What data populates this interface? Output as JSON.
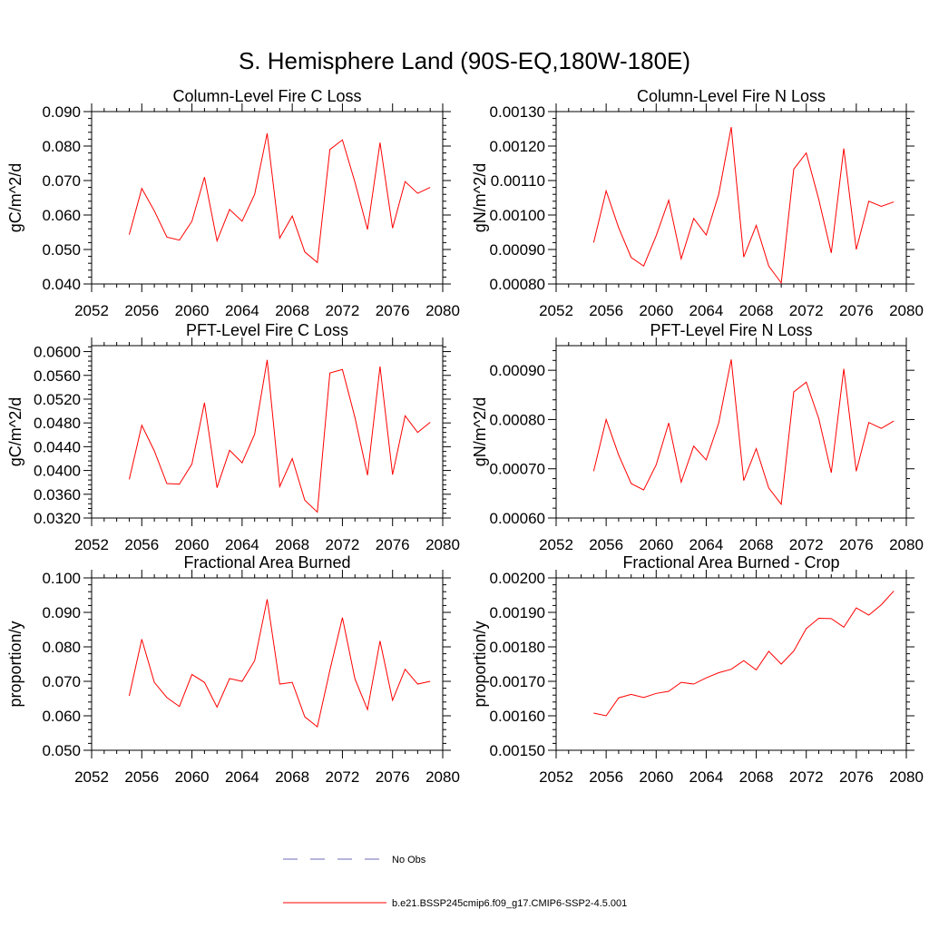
{
  "figure": {
    "title": "S. Hemisphere Land (90S-EQ,180W-180E)"
  },
  "colors": {
    "series": "#ff0000",
    "obs": "#6b6bb5",
    "axis": "#000000"
  },
  "legend": {
    "placement": "bottom-center",
    "entries": [
      {
        "label": "No Obs",
        "style": "dashed",
        "color": "#6b6bb5"
      },
      {
        "label": "b.e21.BSSP245cmip6.f09_g17.CMIP6-SSP2-4.5.001",
        "style": "solid",
        "color": "#ff0000"
      }
    ]
  },
  "chart_data": [
    {
      "type": "line",
      "title": "Column-Level Fire C Loss",
      "xlabel": "",
      "ylabel": "gC/m^2/d",
      "xlim": [
        2052,
        2080
      ],
      "xticks": [
        "2052",
        "2056",
        "2060",
        "2064",
        "2068",
        "2072",
        "2076",
        "2080"
      ],
      "ylim": [
        0.04,
        0.09
      ],
      "yticks": [
        "0.040",
        "0.050",
        "0.060",
        "0.070",
        "0.080",
        "0.090"
      ],
      "x": [
        2055,
        2056,
        2057,
        2058,
        2059,
        2060,
        2061,
        2062,
        2063,
        2064,
        2065,
        2066,
        2067,
        2068,
        2069,
        2070,
        2071,
        2072,
        2073,
        2074,
        2075,
        2076,
        2077,
        2078,
        2079
      ],
      "series": [
        {
          "values": [
            0.0543,
            0.0677,
            0.0612,
            0.0536,
            0.0527,
            0.0582,
            0.071,
            0.0525,
            0.0616,
            0.0582,
            0.066,
            0.0837,
            0.0533,
            0.0597,
            0.0493,
            0.0462,
            0.079,
            0.0818,
            0.0695,
            0.0558,
            0.081,
            0.0562,
            0.0697,
            0.0663,
            0.068
          ]
        }
      ]
    },
    {
      "type": "line",
      "title": "Column-Level Fire N Loss",
      "xlabel": "",
      "ylabel": "gN/m^2/d",
      "xlim": [
        2052,
        2080
      ],
      "xticks": [
        "2052",
        "2056",
        "2060",
        "2064",
        "2068",
        "2072",
        "2076",
        "2080"
      ],
      "ylim": [
        0.0008,
        0.0013
      ],
      "yticks": [
        "0.00080",
        "0.00090",
        "0.00100",
        "0.00110",
        "0.00120",
        "0.00130"
      ],
      "x": [
        2055,
        2056,
        2057,
        2058,
        2059,
        2060,
        2061,
        2062,
        2063,
        2064,
        2065,
        2066,
        2067,
        2068,
        2069,
        2070,
        2071,
        2072,
        2073,
        2074,
        2075,
        2076,
        2077,
        2078,
        2079
      ],
      "series": [
        {
          "values": [
            0.00092,
            0.00107,
            0.000963,
            0.000877,
            0.000852,
            0.00094,
            0.001043,
            0.000873,
            0.00099,
            0.000942,
            0.00106,
            0.001255,
            0.000878,
            0.00097,
            0.000852,
            0.000803,
            0.001133,
            0.00118,
            0.001045,
            0.00089,
            0.001193,
            0.0009,
            0.00104,
            0.001025,
            0.001038
          ]
        }
      ]
    },
    {
      "type": "line",
      "title": "PFT-Level Fire C Loss",
      "xlabel": "",
      "ylabel": "gC/m^2/d",
      "xlim": [
        2052,
        2080
      ],
      "xticks": [
        "2052",
        "2056",
        "2060",
        "2064",
        "2068",
        "2072",
        "2076",
        "2080"
      ],
      "ylim": [
        0.032,
        0.061
      ],
      "yticks": [
        "0.0320",
        "0.0360",
        "0.0400",
        "0.0440",
        "0.0480",
        "0.0520",
        "0.0560",
        "0.0600"
      ],
      "x": [
        2055,
        2056,
        2057,
        2058,
        2059,
        2060,
        2061,
        2062,
        2063,
        2064,
        2065,
        2066,
        2067,
        2068,
        2069,
        2070,
        2071,
        2072,
        2073,
        2074,
        2075,
        2076,
        2077,
        2078,
        2079
      ],
      "series": [
        {
          "values": [
            0.0385,
            0.0476,
            0.0433,
            0.0378,
            0.0377,
            0.0411,
            0.0514,
            0.0371,
            0.0434,
            0.0413,
            0.0461,
            0.0586,
            0.0373,
            0.042,
            0.035,
            0.033,
            0.0564,
            0.057,
            0.0489,
            0.0392,
            0.0575,
            0.0393,
            0.0492,
            0.0464,
            0.0481
          ]
        }
      ]
    },
    {
      "type": "line",
      "title": "PFT-Level Fire N Loss",
      "xlabel": "",
      "ylabel": "gN/m^2/d",
      "xlim": [
        2052,
        2080
      ],
      "xticks": [
        "2052",
        "2056",
        "2060",
        "2064",
        "2068",
        "2072",
        "2076",
        "2080"
      ],
      "ylim": [
        0.0006,
        0.00095
      ],
      "yticks": [
        "0.00060",
        "0.00070",
        "0.00080",
        "0.00090"
      ],
      "x": [
        2055,
        2056,
        2057,
        2058,
        2059,
        2060,
        2061,
        2062,
        2063,
        2064,
        2065,
        2066,
        2067,
        2068,
        2069,
        2070,
        2071,
        2072,
        2073,
        2074,
        2075,
        2076,
        2077,
        2078,
        2079
      ],
      "series": [
        {
          "values": [
            0.000695,
            0.0008,
            0.000728,
            0.00067,
            0.000657,
            0.000708,
            0.000793,
            0.000673,
            0.000746,
            0.000718,
            0.000793,
            0.000922,
            0.000676,
            0.000741,
            0.000661,
            0.000628,
            0.000856,
            0.000876,
            0.000802,
            0.000692,
            0.000903,
            0.000695,
            0.000794,
            0.000782,
            0.000797
          ]
        }
      ]
    },
    {
      "type": "line",
      "title": "Fractional Area Burned",
      "xlabel": "",
      "ylabel": "proportion/y",
      "xlim": [
        2052,
        2080
      ],
      "xticks": [
        "2052",
        "2056",
        "2060",
        "2064",
        "2068",
        "2072",
        "2076",
        "2080"
      ],
      "ylim": [
        0.05,
        0.1
      ],
      "yticks": [
        "0.050",
        "0.060",
        "0.070",
        "0.080",
        "0.090",
        "0.100"
      ],
      "x": [
        2055,
        2056,
        2057,
        2058,
        2059,
        2060,
        2061,
        2062,
        2063,
        2064,
        2065,
        2066,
        2067,
        2068,
        2069,
        2070,
        2071,
        2072,
        2073,
        2074,
        2075,
        2076,
        2077,
        2078,
        2079
      ],
      "series": [
        {
          "values": [
            0.0658,
            0.0822,
            0.0697,
            0.0653,
            0.0627,
            0.072,
            0.0697,
            0.0625,
            0.0708,
            0.07,
            0.076,
            0.0938,
            0.0692,
            0.0697,
            0.0597,
            0.0568,
            0.0732,
            0.0885,
            0.0707,
            0.0618,
            0.0817,
            0.0645,
            0.0735,
            0.0692,
            0.07
          ]
        }
      ]
    },
    {
      "type": "line",
      "title": "Fractional Area Burned - Crop",
      "xlabel": "",
      "ylabel": "proportion/y",
      "xlim": [
        2052,
        2080
      ],
      "xticks": [
        "2052",
        "2056",
        "2060",
        "2064",
        "2068",
        "2072",
        "2076",
        "2080"
      ],
      "ylim": [
        0.0015,
        0.002
      ],
      "yticks": [
        "0.00150",
        "0.00160",
        "0.00170",
        "0.00180",
        "0.00190",
        "0.00200"
      ],
      "x": [
        2055,
        2056,
        2057,
        2058,
        2059,
        2060,
        2061,
        2062,
        2063,
        2064,
        2065,
        2066,
        2067,
        2068,
        2069,
        2070,
        2071,
        2072,
        2073,
        2074,
        2075,
        2076,
        2077,
        2078,
        2079
      ],
      "series": [
        {
          "values": [
            0.001608,
            0.0016,
            0.001652,
            0.001662,
            0.001653,
            0.001665,
            0.001671,
            0.001697,
            0.001692,
            0.00171,
            0.001725,
            0.001735,
            0.00176,
            0.001733,
            0.001787,
            0.00175,
            0.001788,
            0.001853,
            0.001883,
            0.001882,
            0.001857,
            0.001913,
            0.001892,
            0.001922,
            0.001962
          ]
        }
      ]
    }
  ]
}
